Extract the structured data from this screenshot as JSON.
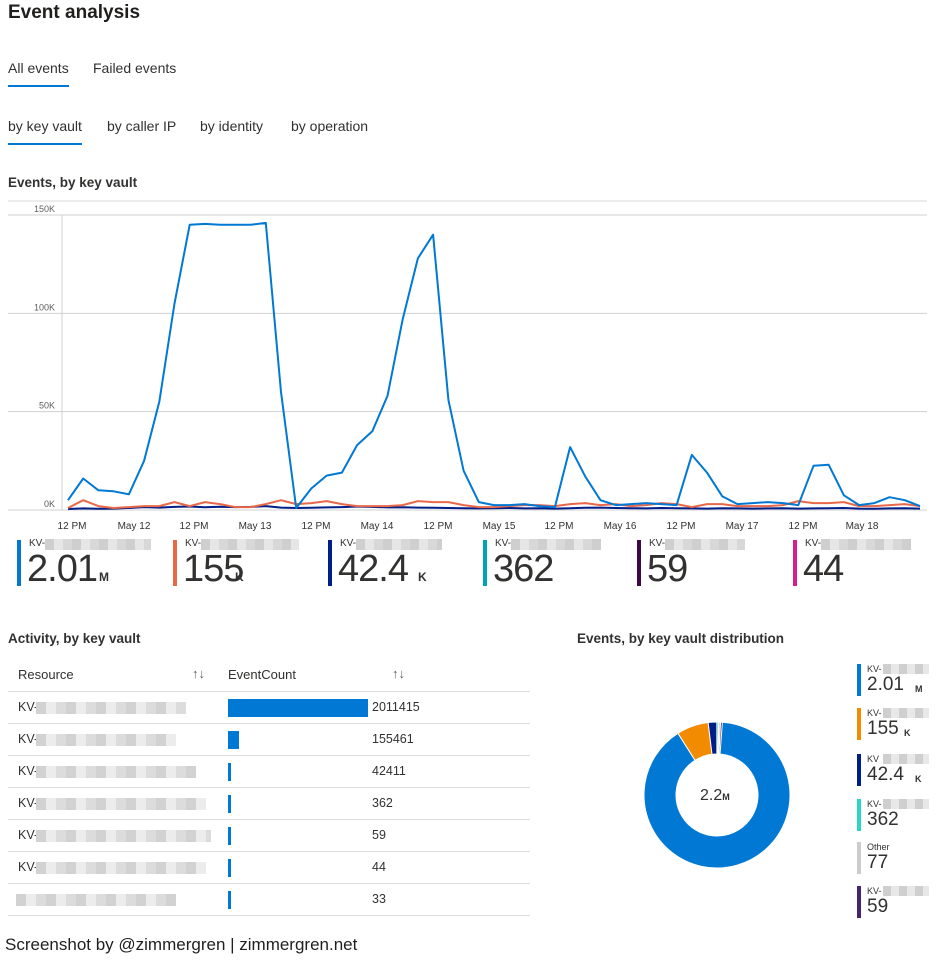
{
  "header": {
    "title": "Event analysis"
  },
  "tabs": [
    {
      "label": "All events",
      "active": true
    },
    {
      "label": "Failed events",
      "active": false
    }
  ],
  "subtabs": [
    {
      "label": "by key vault",
      "active": true
    },
    {
      "label": "by caller IP",
      "active": false
    },
    {
      "label": "by identity",
      "active": false
    },
    {
      "label": "by operation",
      "active": false
    }
  ],
  "events_chart": {
    "title": "Events, by key vault",
    "y_ticks": [
      "150K",
      "100K",
      "50K",
      "0K"
    ],
    "x_ticks": [
      "12 PM",
      "May 12",
      "12 PM",
      "May 13",
      "12 PM",
      "May 14",
      "12 PM",
      "May 15",
      "12 PM",
      "May 16",
      "12 PM",
      "May 17",
      "12 PM",
      "May 18"
    ]
  },
  "chart_data": {
    "type": "line",
    "ylim": [
      0,
      150000
    ],
    "x_ticks": [
      "12 PM",
      "May 12",
      "12 PM",
      "May 13",
      "12 PM",
      "May 14",
      "12 PM",
      "May 15",
      "12 PM",
      "May 16",
      "12 PM",
      "May 17",
      "12 PM",
      "May 18"
    ],
    "y_ticks": [
      "0K",
      "50K",
      "100K",
      "150K"
    ],
    "grid": true,
    "series": [
      {
        "color": "#0078d4",
        "values": [
          5000,
          16000,
          10000,
          9500,
          8000,
          25000,
          55000,
          105000,
          145000,
          145500,
          145000,
          145000,
          145000,
          146000,
          60000,
          1000,
          11000,
          17500,
          19000,
          33000,
          40000,
          58000,
          97000,
          128000,
          140000,
          56000,
          20000,
          4000,
          2500,
          2500,
          3000,
          2000,
          1500,
          32000,
          17000,
          5000,
          2500,
          3000,
          3500,
          3000,
          2500,
          28000,
          19000,
          7000,
          3000,
          3500,
          4000,
          3500,
          2500,
          22500,
          23000,
          7500,
          2500,
          3500,
          6500,
          5000,
          2000
        ]
      },
      {
        "color": "#e8684a",
        "values": [
          1000,
          5000,
          2000,
          1000,
          1500,
          2000,
          2000,
          4000,
          2000,
          4000,
          3000,
          1500,
          1500,
          3000,
          5000,
          3000,
          3500,
          4500,
          3000,
          2000,
          2000,
          2000,
          2500,
          4500,
          4000,
          4000,
          2500,
          1500,
          1500,
          2000,
          2500,
          2500,
          2000,
          3000,
          3500,
          2500,
          3000,
          2000,
          2500,
          3500,
          3000,
          1500,
          3000,
          3000,
          2000,
          2000,
          2000,
          2500,
          4500,
          3500,
          3500,
          4000,
          2000,
          2000,
          2500,
          3000,
          2000
        ]
      },
      {
        "color": "#001e88",
        "values": [
          500,
          800,
          600,
          700,
          1000,
          1500,
          1200,
          1600,
          1800,
          1400,
          1700,
          1500,
          1600,
          2000,
          1200,
          1000,
          1100,
          1300,
          1500,
          1800,
          1600,
          1300,
          1400,
          1200,
          1100,
          1000,
          900,
          800,
          900,
          1000,
          800,
          900,
          700,
          900,
          1100,
          1200,
          1000,
          900,
          800,
          1000,
          900,
          800,
          700,
          900,
          800,
          700,
          800,
          900,
          700,
          800,
          900,
          1000,
          700,
          600,
          800,
          900,
          700
        ]
      }
    ]
  },
  "tiles": [
    {
      "prefix": "KV-",
      "value": "2.01",
      "unit": "M",
      "color": "#0078d4"
    },
    {
      "prefix": "KV-",
      "value": "155",
      "unit": "K",
      "color": "#e8684a"
    },
    {
      "prefix": "KV-",
      "value": "42.4",
      "unit": "K",
      "color": "#001e88"
    },
    {
      "prefix": "KV-",
      "value": "362",
      "unit": "",
      "color": "#00a5b5"
    },
    {
      "prefix": "KV-",
      "value": "59",
      "unit": "",
      "color": "#3b0a45"
    },
    {
      "prefix": "KV-",
      "value": "44",
      "unit": "",
      "color": "#d41f8c"
    }
  ],
  "activity": {
    "title": "Activity, by key vault",
    "columns": {
      "resource": "Resource",
      "count": "EventCount"
    },
    "rows": [
      {
        "resource": "KV-",
        "count": "2011415",
        "ratio": 1.0
      },
      {
        "resource": "KV-",
        "count": "155461",
        "ratio": 0.077
      },
      {
        "resource": "KV-",
        "count": "42411",
        "ratio": 0.021
      },
      {
        "resource": "KV-",
        "count": "362",
        "ratio": 0.001
      },
      {
        "resource": "KV-",
        "count": "59",
        "ratio": 0.001
      },
      {
        "resource": "KV-",
        "count": "44",
        "ratio": 0.001
      },
      {
        "resource": "",
        "count": "33",
        "ratio": 0.001
      }
    ]
  },
  "distribution": {
    "title": "Events, by key vault distribution",
    "center_value": "2.2",
    "center_unit": "M",
    "slices": [
      {
        "value": 2011415,
        "color": "#0078d4"
      },
      {
        "value": 155461,
        "color": "#f28b00"
      },
      {
        "value": 42411,
        "color": "#001e88"
      },
      {
        "value": 362,
        "color": "#2bd4c4"
      },
      {
        "value": 77,
        "color": "#cccccc"
      },
      {
        "value": 59,
        "color": "#45266b"
      }
    ],
    "legend": [
      {
        "prefix": "KV-",
        "value": "2.01",
        "unit": "M",
        "color": "#0078d4"
      },
      {
        "prefix": "KV-",
        "value": "155",
        "unit": "K",
        "color": "#f28b00"
      },
      {
        "prefix": "KV",
        "value": "42.4",
        "unit": "K",
        "color": "#001e88"
      },
      {
        "prefix": "KV-",
        "value": "362",
        "unit": "",
        "color": "#2bd4c4"
      },
      {
        "prefix": "Other",
        "value": "77",
        "unit": "",
        "color": "#cccccc"
      },
      {
        "prefix": "KV-",
        "value": "59",
        "unit": "",
        "color": "#45266b"
      }
    ]
  },
  "footer": {
    "text": "Screenshot by @zimmergren | zimmergren.net"
  }
}
